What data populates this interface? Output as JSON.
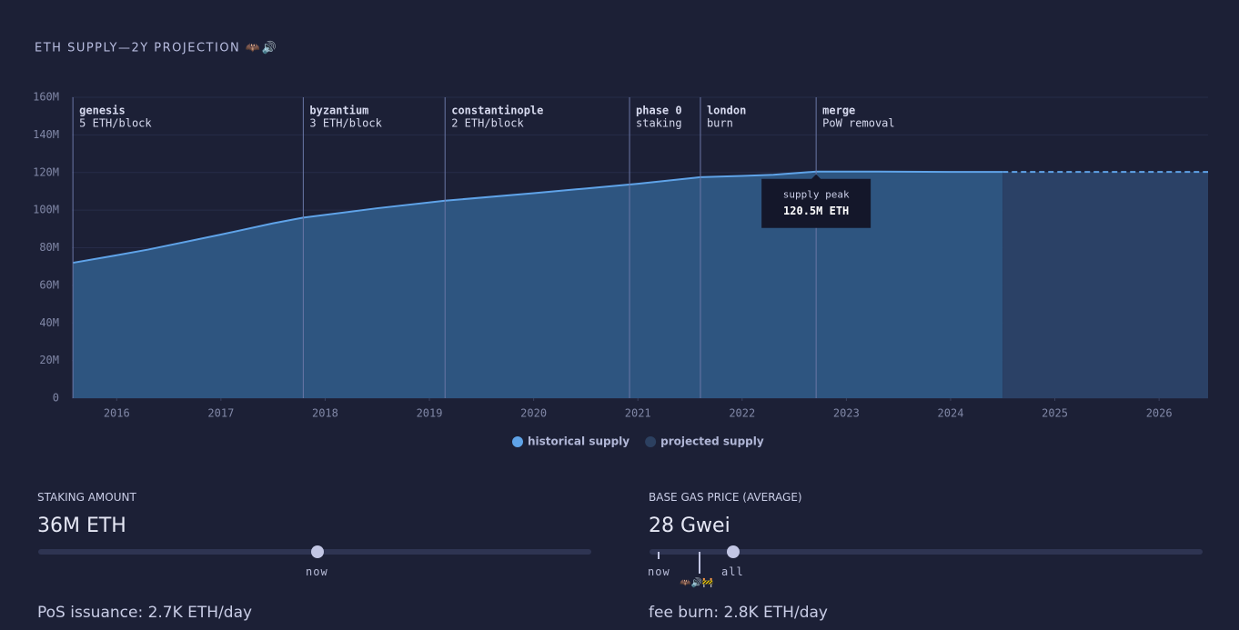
{
  "chart_data": {
    "type": "area",
    "title": "ETH SUPPLY—2Y PROJECTION 🦇🔊",
    "xlim": [
      2015.57,
      2026.47
    ],
    "xticks": [
      2016,
      2017,
      2018,
      2019,
      2020,
      2021,
      2022,
      2023,
      2024,
      2025,
      2026
    ],
    "ylim": [
      0,
      160
    ],
    "yticks": [
      {
        "value": 0,
        "label": "0"
      },
      {
        "value": 20,
        "label": "20M"
      },
      {
        "value": 40,
        "label": "40M"
      },
      {
        "value": 60,
        "label": "60M"
      },
      {
        "value": 80,
        "label": "80M"
      },
      {
        "value": 100,
        "label": "100M"
      },
      {
        "value": 120,
        "label": "120M"
      },
      {
        "value": 140,
        "label": "140M"
      },
      {
        "value": 160,
        "label": "160M"
      }
    ],
    "grid": true,
    "series": [
      {
        "name": "historical supply",
        "color": "#5fa3e8",
        "fill": "#2e5580",
        "dashed": false,
        "x": [
          2015.58,
          2016.0,
          2016.3,
          2017.0,
          2017.5,
          2017.79,
          2018.5,
          2019.15,
          2020.0,
          2020.5,
          2021.0,
          2021.6,
          2022.0,
          2022.3,
          2022.71,
          2023.3,
          2024.0,
          2024.5
        ],
        "values": [
          72,
          76,
          79,
          87,
          93,
          96,
          101,
          105,
          109,
          111.5,
          114,
          117.5,
          118.2,
          118.8,
          120.5,
          120.5,
          120.3,
          120.3
        ]
      },
      {
        "name": "projected supply",
        "color": "#5fa3e8",
        "fill": "#2b4166",
        "legend_color": "#2c4060",
        "dashed": true,
        "x": [
          2024.5,
          2026.47
        ],
        "values": [
          120.3,
          120.3
        ]
      }
    ],
    "events": [
      {
        "x": 2015.58,
        "title": "genesis",
        "subtitle": "5 ETH/block"
      },
      {
        "x": 2017.79,
        "title": "byzantium",
        "subtitle": "3 ETH/block"
      },
      {
        "x": 2019.15,
        "title": "constantinople",
        "subtitle": "2 ETH/block"
      },
      {
        "x": 2020.92,
        "title": "phase 0",
        "subtitle": "staking"
      },
      {
        "x": 2021.6,
        "title": "london",
        "subtitle": "burn"
      },
      {
        "x": 2022.71,
        "title": "merge",
        "subtitle": "PoW removal"
      }
    ],
    "annotation": {
      "x": 2022.71,
      "y": 120.5,
      "title": "supply peak",
      "label": "120.5M ETH"
    }
  },
  "controls": {
    "staking": {
      "label": "STAKING AMOUNT",
      "value": "36M ETH",
      "marker": "now",
      "result": "PoS issuance: 2.7K ETH/day"
    },
    "gas": {
      "label": "BASE GAS PRICE (AVERAGE)",
      "value": "28 Gwei",
      "marker_now": "now",
      "marker_all": "all",
      "icons": "🦇🔊🚧",
      "result": "fee burn: 2.8K ETH/day"
    }
  }
}
